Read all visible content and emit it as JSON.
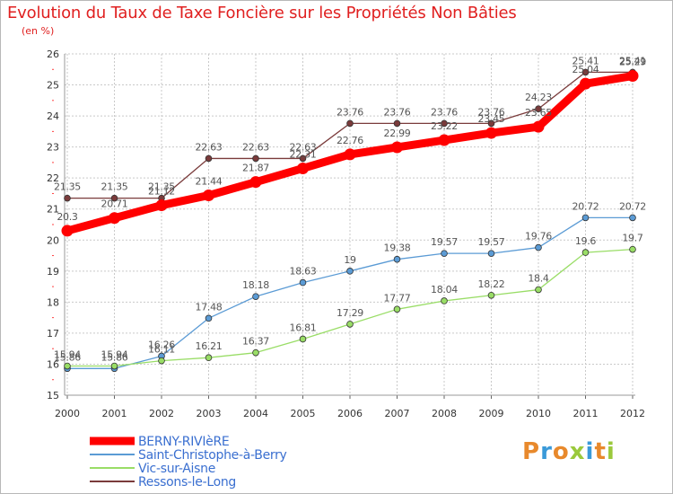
{
  "title": "Evolution du Taux de Taxe Foncière sur les Propriétés Non Bâties",
  "subtitle": "(en %)",
  "logo": {
    "text": "Proxiti",
    "colors": [
      "#e8892c",
      "#3a9ad9",
      "#e8892c",
      "#9bc93c",
      "#3a9ad9",
      "#e8892c",
      "#9bc93c"
    ]
  },
  "chart_data": {
    "type": "line",
    "x": [
      "2000",
      "2001",
      "2002",
      "2003",
      "2004",
      "2005",
      "2006",
      "2007",
      "2008",
      "2009",
      "2010",
      "2011",
      "2012"
    ],
    "ylim": [
      15,
      26
    ],
    "yticks": [
      "15",
      "16",
      "17",
      "18",
      "19",
      "20",
      "21",
      "22",
      "23",
      "24",
      "25",
      "26"
    ],
    "grid": true,
    "legend_position": "bottom-left",
    "series": [
      {
        "name": "BERNY-RIVIèRE",
        "color": "#ff0000",
        "values": [
          20.3,
          20.71,
          21.12,
          21.44,
          21.87,
          22.31,
          22.76,
          22.99,
          23.22,
          23.45,
          23.65,
          25.04,
          25.29
        ],
        "labels": [
          "20.3",
          "20.71",
          "21.12",
          "21.44",
          "21.87",
          "22.31",
          "22.76",
          "22.99",
          "23.22",
          "23.45",
          "23.65",
          "25.04",
          "25.29"
        ]
      },
      {
        "name": "Saint-Christophe-à-Berry",
        "color": "#5b9bd5",
        "values": [
          15.86,
          15.86,
          16.26,
          17.48,
          18.18,
          18.63,
          19,
          19.38,
          19.57,
          19.57,
          19.76,
          20.72,
          20.72
        ],
        "labels": [
          "15.86",
          "15.86",
          "16.26",
          "17.48",
          "18.18",
          "18.63",
          "19",
          "19.38",
          "19.57",
          "19.57",
          "19.76",
          "20.72",
          "20.72"
        ]
      },
      {
        "name": "Vic-sur-Aisne",
        "color": "#99dd66",
        "values": [
          15.94,
          15.94,
          16.11,
          16.21,
          16.37,
          16.81,
          17.29,
          17.77,
          18.04,
          18.22,
          18.4,
          19.6,
          19.7
        ],
        "labels": [
          "15.94",
          "15.94",
          "16.11",
          "16.21",
          "16.37",
          "16.81",
          "17.29",
          "17.77",
          "18.04",
          "18.22",
          "18.4",
          "19.6",
          "19.7"
        ]
      },
      {
        "name": "Ressons-le-Long",
        "color": "#7a3b3b",
        "values": [
          21.35,
          21.35,
          21.35,
          22.63,
          22.63,
          22.63,
          23.76,
          23.76,
          23.76,
          23.76,
          24.23,
          25.41,
          25.41
        ],
        "labels": [
          "21.35",
          "21.35",
          "21.35",
          "22.63",
          "22.63",
          "22.63",
          "23.76",
          "23.76",
          "23.76",
          "23.76",
          "24.23",
          "25.41",
          "25.41"
        ]
      }
    ]
  }
}
